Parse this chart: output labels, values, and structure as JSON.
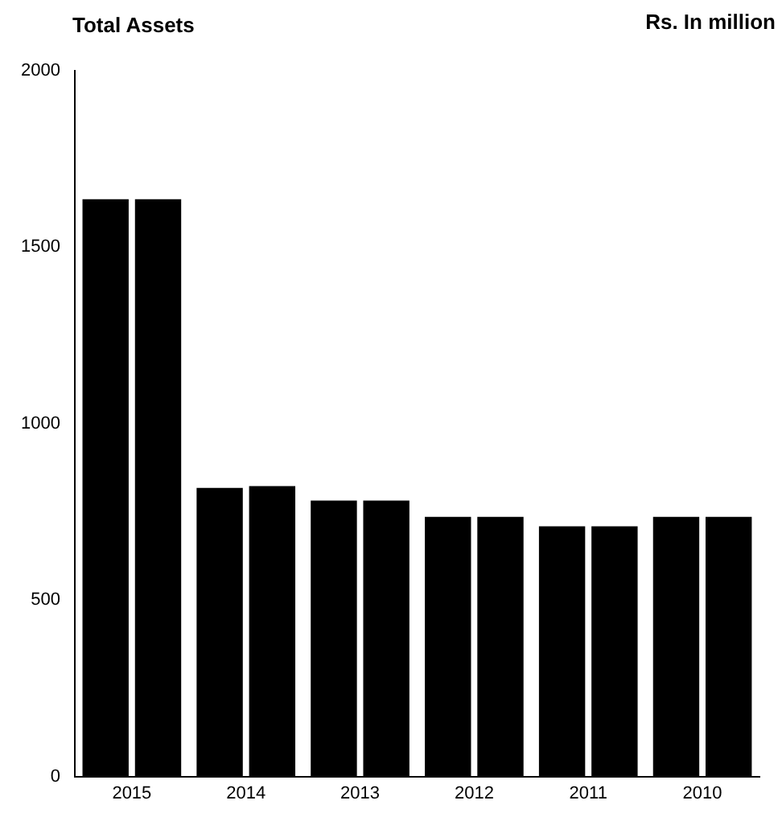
{
  "chart_data": {
    "type": "bar",
    "title": "Total Assets",
    "annotations": [
      "Rs. In million"
    ],
    "categories": [
      "2015",
      "2014",
      "2013",
      "2012",
      "2011",
      "2010"
    ],
    "series": [
      {
        "color": "#000000",
        "values": [
          1636,
          818,
          782,
          736,
          709,
          736
        ]
      },
      {
        "color": "#000000",
        "values": [
          1636,
          823,
          782,
          736,
          709,
          736
        ]
      }
    ],
    "ylim": [
      0,
      2000
    ],
    "yticks": [
      0,
      500,
      1000,
      1500,
      2000
    ],
    "grid": false,
    "legend": false
  }
}
